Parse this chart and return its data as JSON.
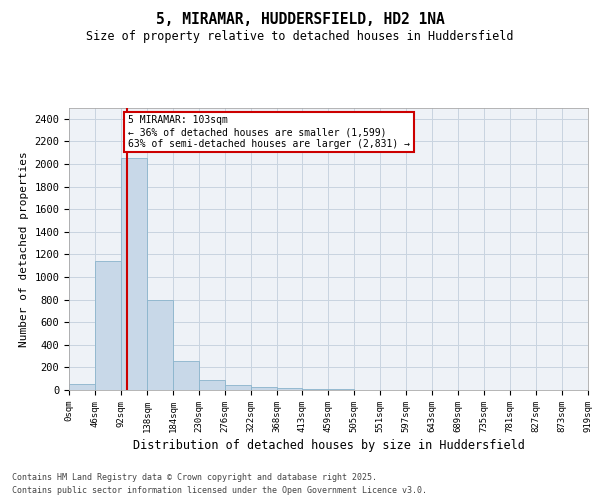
{
  "title_line1": "5, MIRAMAR, HUDDERSFIELD, HD2 1NA",
  "title_line2": "Size of property relative to detached houses in Huddersfield",
  "xlabel": "Distribution of detached houses by size in Huddersfield",
  "ylabel": "Number of detached properties",
  "footer_line1": "Contains HM Land Registry data © Crown copyright and database right 2025.",
  "footer_line2": "Contains public sector information licensed under the Open Government Licence v3.0.",
  "bar_edges": [
    0,
    46,
    92,
    138,
    184,
    230,
    276,
    322,
    368,
    413,
    459,
    505,
    551,
    597,
    643,
    689,
    735,
    781,
    827,
    873,
    919
  ],
  "bar_heights": [
    50,
    1140,
    2050,
    800,
    260,
    90,
    45,
    30,
    20,
    10,
    5,
    3,
    2,
    1,
    1,
    0,
    0,
    0,
    0,
    0
  ],
  "bar_color": "#c8d8e8",
  "bar_edge_color": "#8ab4cc",
  "grid_color": "#c8d4e0",
  "bg_color": "#eef2f7",
  "vline_x": 103,
  "vline_color": "#cc0000",
  "annotation_text": "5 MIRAMAR: 103sqm\n← 36% of detached houses are smaller (1,599)\n63% of semi-detached houses are larger (2,831) →",
  "annotation_box_color": "#cc0000",
  "ylim": [
    0,
    2500
  ],
  "yticks": [
    0,
    200,
    400,
    600,
    800,
    1000,
    1200,
    1400,
    1600,
    1800,
    2000,
    2200,
    2400
  ],
  "tick_labels": [
    "0sqm",
    "46sqm",
    "92sqm",
    "138sqm",
    "184sqm",
    "230sqm",
    "276sqm",
    "322sqm",
    "368sqm",
    "413sqm",
    "459sqm",
    "505sqm",
    "551sqm",
    "597sqm",
    "643sqm",
    "689sqm",
    "735sqm",
    "781sqm",
    "827sqm",
    "873sqm",
    "919sqm"
  ],
  "figsize": [
    6.0,
    5.0
  ],
  "dpi": 100
}
